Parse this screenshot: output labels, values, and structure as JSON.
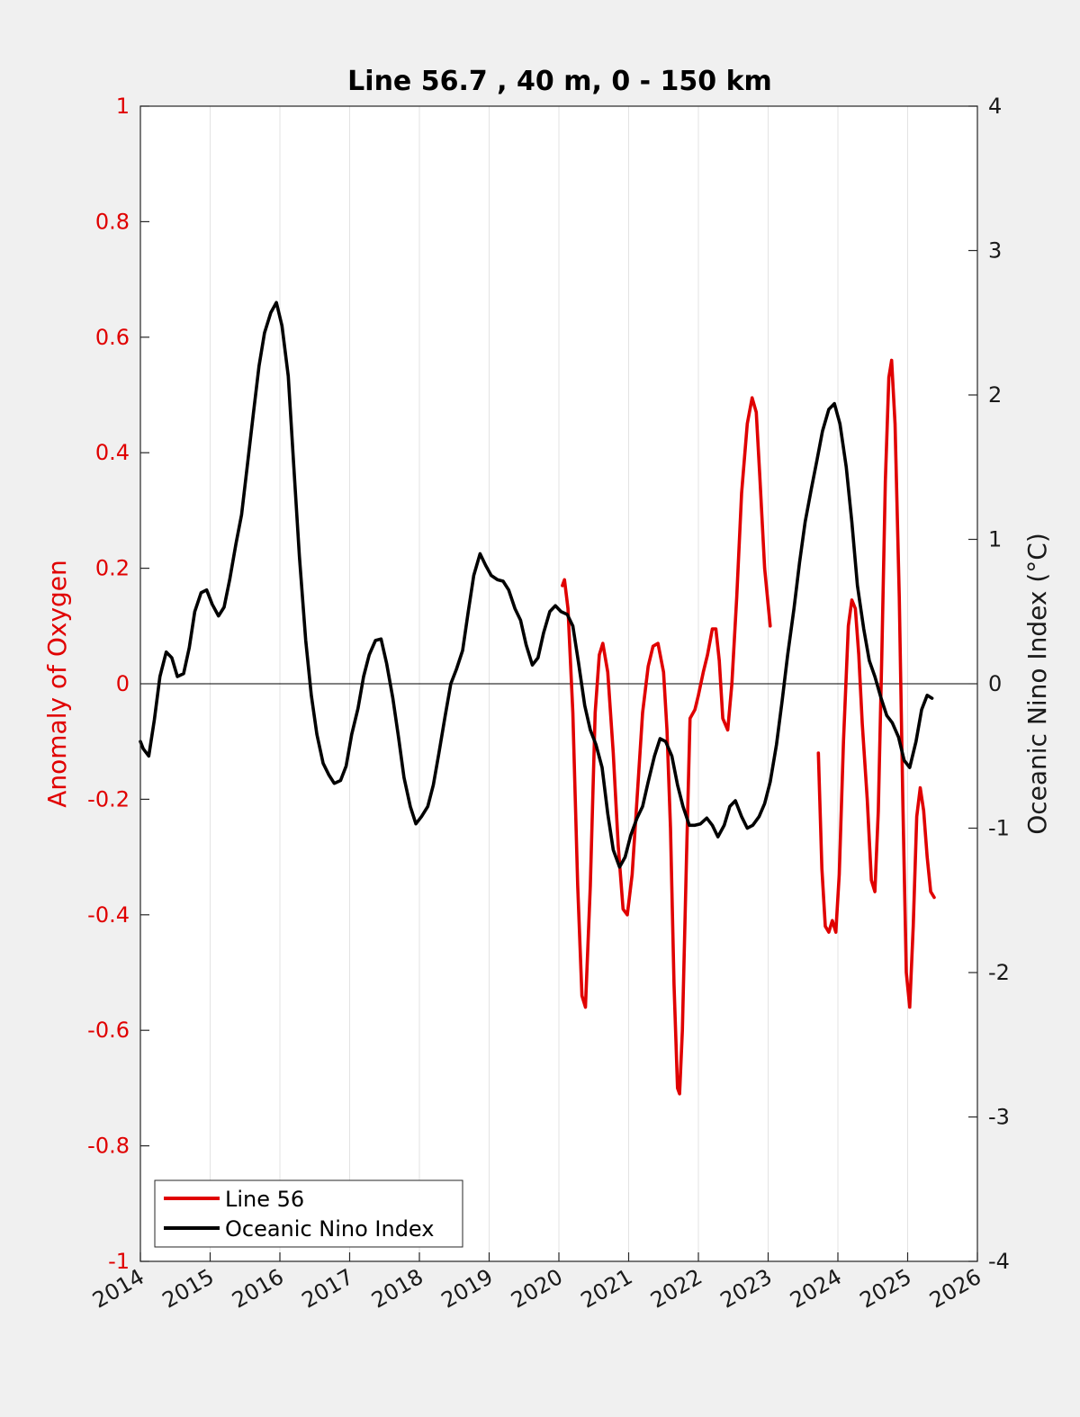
{
  "chart_data": {
    "type": "line",
    "title": "Line 56.7 , 40 m, 0 - 150 km",
    "xlabel": "",
    "ylabel_left": "Anomaly of Oxygen",
    "ylabel_right": "Oceanic Nino Index (°C)",
    "xlim": [
      2014,
      2026
    ],
    "ylim_left": [
      -1,
      1
    ],
    "ylim_right": [
      -4,
      4
    ],
    "x_ticks": [
      2014,
      2015,
      2016,
      2017,
      2018,
      2019,
      2020,
      2021,
      2022,
      2023,
      2024,
      2025,
      2026
    ],
    "x_tick_labels": [
      "2014",
      "2015",
      "2016",
      "2017",
      "2018",
      "2019",
      "2020",
      "2021",
      "2022",
      "2023",
      "2024",
      "2025",
      "2026"
    ],
    "y_left_ticks": [
      1,
      0.8,
      0.6,
      0.4,
      0.2,
      0,
      -0.2,
      -0.4,
      -0.6,
      -0.8,
      -1
    ],
    "y_left_tick_labels": [
      "1",
      "0.8",
      "0.6",
      "0.4",
      "0.2",
      "0",
      "-0.2",
      "-0.4",
      "-0.6",
      "-0.8",
      "-1"
    ],
    "y_right_ticks": [
      4,
      3,
      2,
      1,
      0,
      -1,
      -2,
      -3,
      -4
    ],
    "y_right_tick_labels": [
      "4",
      "3",
      "2",
      "1",
      "0",
      "-1",
      "-2",
      "-3",
      "-4"
    ],
    "grid": "vertical",
    "zero_line": true,
    "legend": {
      "position": "bottom-left",
      "entries": [
        "Line 56",
        "Oceanic Nino Index"
      ]
    },
    "colors": {
      "line56": "#e00000",
      "oni": "#000000"
    },
    "series": [
      {
        "name": "Line 56",
        "axis": "left",
        "color": "#e00000",
        "segments": [
          [
            [
              2020.05,
              0.17
            ],
            [
              2020.08,
              0.18
            ],
            [
              2020.13,
              0.13
            ],
            [
              2020.2,
              -0.05
            ],
            [
              2020.27,
              -0.35
            ],
            [
              2020.33,
              -0.54
            ],
            [
              2020.38,
              -0.56
            ],
            [
              2020.45,
              -0.35
            ],
            [
              2020.52,
              -0.05
            ],
            [
              2020.58,
              0.05
            ],
            [
              2020.63,
              0.07
            ],
            [
              2020.7,
              0.02
            ],
            [
              2020.78,
              -0.12
            ],
            [
              2020.85,
              -0.28
            ],
            [
              2020.92,
              -0.39
            ],
            [
              2020.98,
              -0.4
            ],
            [
              2021.05,
              -0.33
            ],
            [
              2021.12,
              -0.2
            ],
            [
              2021.2,
              -0.05
            ],
            [
              2021.28,
              0.03
            ],
            [
              2021.35,
              0.065
            ],
            [
              2021.42,
              0.07
            ],
            [
              2021.5,
              0.02
            ],
            [
              2021.55,
              -0.08
            ],
            [
              2021.6,
              -0.25
            ],
            [
              2021.65,
              -0.52
            ],
            [
              2021.7,
              -0.7
            ],
            [
              2021.73,
              -0.71
            ],
            [
              2021.77,
              -0.6
            ],
            [
              2021.83,
              -0.3
            ],
            [
              2021.88,
              -0.06
            ],
            [
              2021.95,
              -0.045
            ],
            [
              2022.0,
              -0.02
            ],
            [
              2022.07,
              0.02
            ],
            [
              2022.13,
              0.05
            ],
            [
              2022.2,
              0.095
            ],
            [
              2022.25,
              0.095
            ],
            [
              2022.3,
              0.04
            ],
            [
              2022.35,
              -0.06
            ],
            [
              2022.42,
              -0.08
            ],
            [
              2022.48,
              0.0
            ],
            [
              2022.55,
              0.15
            ],
            [
              2022.62,
              0.33
            ],
            [
              2022.7,
              0.45
            ],
            [
              2022.77,
              0.495
            ],
            [
              2022.83,
              0.47
            ],
            [
              2022.88,
              0.36
            ],
            [
              2022.95,
              0.2
            ],
            [
              2023.03,
              0.1
            ]
          ],
          [
            [
              2023.72,
              -0.12
            ],
            [
              2023.77,
              -0.32
            ],
            [
              2023.82,
              -0.42
            ],
            [
              2023.87,
              -0.43
            ],
            [
              2023.92,
              -0.41
            ],
            [
              2023.97,
              -0.43
            ],
            [
              2024.02,
              -0.33
            ],
            [
              2024.08,
              -0.1
            ],
            [
              2024.15,
              0.1
            ],
            [
              2024.2,
              0.145
            ],
            [
              2024.25,
              0.13
            ],
            [
              2024.3,
              0.05
            ],
            [
              2024.35,
              -0.07
            ],
            [
              2024.42,
              -0.2
            ],
            [
              2024.48,
              -0.34
            ],
            [
              2024.53,
              -0.36
            ],
            [
              2024.58,
              -0.22
            ],
            [
              2024.63,
              0.05
            ],
            [
              2024.68,
              0.35
            ],
            [
              2024.73,
              0.53
            ],
            [
              2024.77,
              0.56
            ],
            [
              2024.82,
              0.45
            ],
            [
              2024.88,
              0.15
            ],
            [
              2024.93,
              -0.2
            ],
            [
              2024.98,
              -0.5
            ],
            [
              2025.03,
              -0.56
            ],
            [
              2025.08,
              -0.42
            ],
            [
              2025.13,
              -0.23
            ],
            [
              2025.18,
              -0.18
            ],
            [
              2025.23,
              -0.22
            ],
            [
              2025.28,
              -0.3
            ],
            [
              2025.33,
              -0.36
            ],
            [
              2025.38,
              -0.37
            ]
          ]
        ]
      },
      {
        "name": "Oceanic Nino Index",
        "axis": "right",
        "color": "#000000",
        "points": [
          [
            2014.0,
            -0.4
          ],
          [
            2014.04,
            -0.45
          ],
          [
            2014.12,
            -0.5
          ],
          [
            2014.2,
            -0.25
          ],
          [
            2014.28,
            0.05
          ],
          [
            2014.37,
            0.22
          ],
          [
            2014.45,
            0.18
          ],
          [
            2014.53,
            0.05
          ],
          [
            2014.62,
            0.07
          ],
          [
            2014.7,
            0.25
          ],
          [
            2014.78,
            0.5
          ],
          [
            2014.87,
            0.63
          ],
          [
            2014.95,
            0.65
          ],
          [
            2015.03,
            0.55
          ],
          [
            2015.12,
            0.47
          ],
          [
            2015.2,
            0.53
          ],
          [
            2015.28,
            0.72
          ],
          [
            2015.37,
            0.97
          ],
          [
            2015.45,
            1.17
          ],
          [
            2015.53,
            1.5
          ],
          [
            2015.62,
            1.87
          ],
          [
            2015.7,
            2.2
          ],
          [
            2015.78,
            2.43
          ],
          [
            2015.87,
            2.57
          ],
          [
            2015.95,
            2.64
          ],
          [
            2016.03,
            2.48
          ],
          [
            2016.12,
            2.13
          ],
          [
            2016.2,
            1.5
          ],
          [
            2016.28,
            0.88
          ],
          [
            2016.37,
            0.3
          ],
          [
            2016.45,
            -0.08
          ],
          [
            2016.53,
            -0.35
          ],
          [
            2016.62,
            -0.55
          ],
          [
            2016.7,
            -0.63
          ],
          [
            2016.78,
            -0.69
          ],
          [
            2016.87,
            -0.67
          ],
          [
            2016.95,
            -0.57
          ],
          [
            2017.03,
            -0.35
          ],
          [
            2017.12,
            -0.17
          ],
          [
            2017.2,
            0.05
          ],
          [
            2017.28,
            0.2
          ],
          [
            2017.37,
            0.3
          ],
          [
            2017.45,
            0.31
          ],
          [
            2017.53,
            0.14
          ],
          [
            2017.62,
            -0.1
          ],
          [
            2017.7,
            -0.37
          ],
          [
            2017.78,
            -0.65
          ],
          [
            2017.87,
            -0.85
          ],
          [
            2017.95,
            -0.97
          ],
          [
            2018.03,
            -0.92
          ],
          [
            2018.12,
            -0.85
          ],
          [
            2018.2,
            -0.7
          ],
          [
            2018.28,
            -0.48
          ],
          [
            2018.37,
            -0.22
          ],
          [
            2018.45,
            0.0
          ],
          [
            2018.53,
            0.1
          ],
          [
            2018.62,
            0.23
          ],
          [
            2018.7,
            0.5
          ],
          [
            2018.78,
            0.75
          ],
          [
            2018.87,
            0.9
          ],
          [
            2018.95,
            0.82
          ],
          [
            2019.03,
            0.75
          ],
          [
            2019.12,
            0.72
          ],
          [
            2019.2,
            0.71
          ],
          [
            2019.28,
            0.65
          ],
          [
            2019.37,
            0.52
          ],
          [
            2019.45,
            0.44
          ],
          [
            2019.53,
            0.27
          ],
          [
            2019.62,
            0.13
          ],
          [
            2019.7,
            0.18
          ],
          [
            2019.78,
            0.35
          ],
          [
            2019.87,
            0.5
          ],
          [
            2019.95,
            0.54
          ],
          [
            2020.03,
            0.5
          ],
          [
            2020.12,
            0.48
          ],
          [
            2020.2,
            0.4
          ],
          [
            2020.28,
            0.15
          ],
          [
            2020.37,
            -0.15
          ],
          [
            2020.45,
            -0.32
          ],
          [
            2020.53,
            -0.42
          ],
          [
            2020.62,
            -0.58
          ],
          [
            2020.7,
            -0.9
          ],
          [
            2020.78,
            -1.15
          ],
          [
            2020.87,
            -1.27
          ],
          [
            2020.95,
            -1.2
          ],
          [
            2021.03,
            -1.05
          ],
          [
            2021.12,
            -0.93
          ],
          [
            2021.2,
            -0.85
          ],
          [
            2021.28,
            -0.68
          ],
          [
            2021.37,
            -0.5
          ],
          [
            2021.45,
            -0.38
          ],
          [
            2021.53,
            -0.4
          ],
          [
            2021.62,
            -0.5
          ],
          [
            2021.7,
            -0.7
          ],
          [
            2021.78,
            -0.85
          ],
          [
            2021.87,
            -0.98
          ],
          [
            2021.95,
            -0.98
          ],
          [
            2022.03,
            -0.97
          ],
          [
            2022.12,
            -0.93
          ],
          [
            2022.2,
            -0.98
          ],
          [
            2022.28,
            -1.06
          ],
          [
            2022.37,
            -0.98
          ],
          [
            2022.45,
            -0.85
          ],
          [
            2022.53,
            -0.81
          ],
          [
            2022.62,
            -0.92
          ],
          [
            2022.7,
            -1.0
          ],
          [
            2022.78,
            -0.98
          ],
          [
            2022.87,
            -0.92
          ],
          [
            2022.95,
            -0.83
          ],
          [
            2023.03,
            -0.68
          ],
          [
            2023.12,
            -0.42
          ],
          [
            2023.2,
            -0.12
          ],
          [
            2023.28,
            0.2
          ],
          [
            2023.37,
            0.52
          ],
          [
            2023.45,
            0.84
          ],
          [
            2023.53,
            1.12
          ],
          [
            2023.62,
            1.35
          ],
          [
            2023.7,
            1.55
          ],
          [
            2023.78,
            1.75
          ],
          [
            2023.87,
            1.9
          ],
          [
            2023.95,
            1.94
          ],
          [
            2024.03,
            1.8
          ],
          [
            2024.12,
            1.5
          ],
          [
            2024.2,
            1.12
          ],
          [
            2024.28,
            0.68
          ],
          [
            2024.37,
            0.38
          ],
          [
            2024.45,
            0.16
          ],
          [
            2024.53,
            0.05
          ],
          [
            2024.62,
            -0.1
          ],
          [
            2024.7,
            -0.22
          ],
          [
            2024.78,
            -0.27
          ],
          [
            2024.87,
            -0.37
          ],
          [
            2024.95,
            -0.53
          ],
          [
            2025.03,
            -0.58
          ],
          [
            2025.12,
            -0.4
          ],
          [
            2025.2,
            -0.18
          ],
          [
            2025.28,
            -0.08
          ],
          [
            2025.35,
            -0.1
          ]
        ]
      }
    ]
  }
}
